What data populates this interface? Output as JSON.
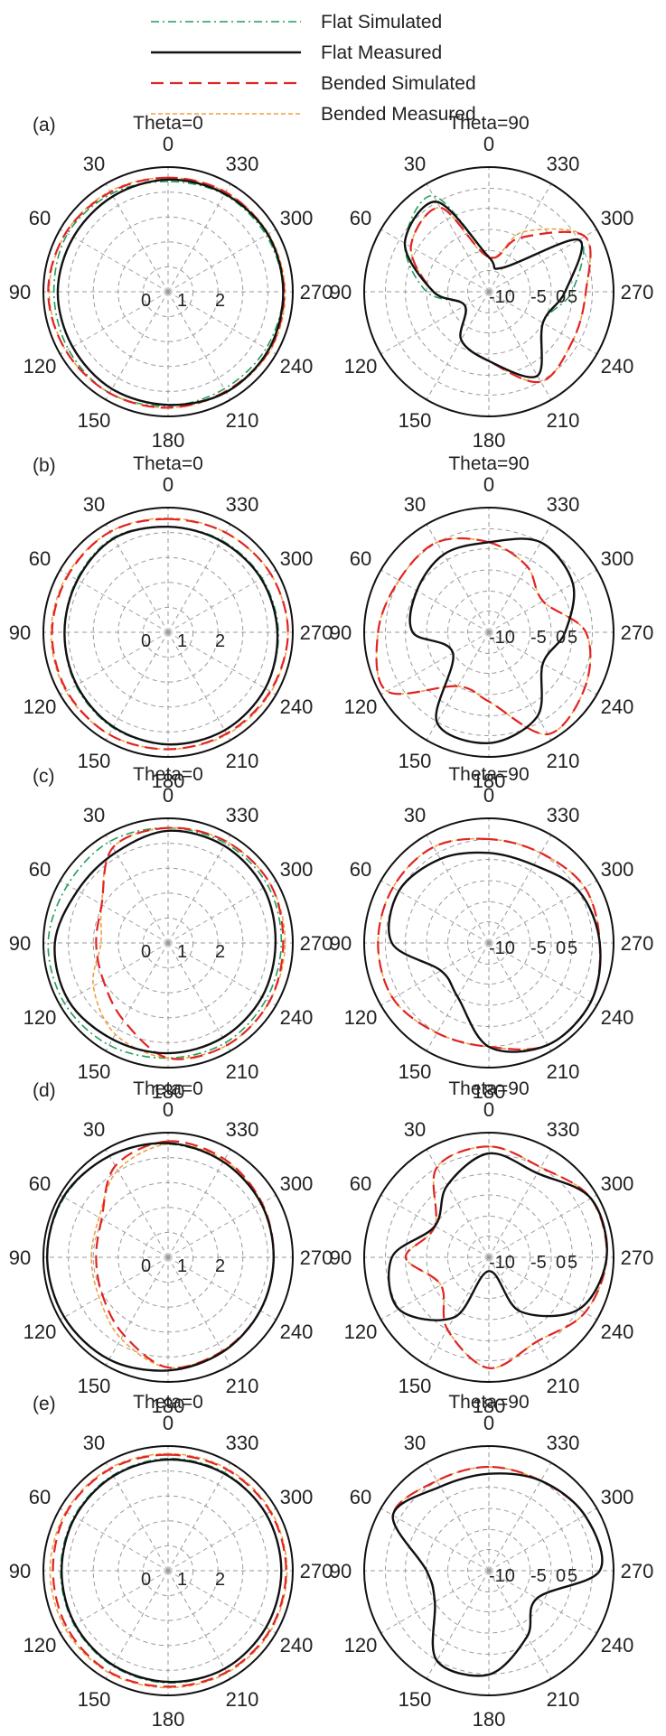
{
  "legend": [
    {
      "label": "Flat Simulated",
      "color": "#1f9e5a",
      "dash": "dashdot"
    },
    {
      "label": "Flat Measured",
      "color": "#111111",
      "dash": "solid"
    },
    {
      "label": "Bended Simulated",
      "color": "#e02424",
      "dash": "longdash"
    },
    {
      "label": "Bended Measured",
      "color": "#f0a040",
      "dash": "shortdash"
    }
  ],
  "chart_data": [
    {
      "type": "polar",
      "panel": "(a)",
      "title": "Theta=0",
      "angle_labels": [
        "0",
        "30",
        "60",
        "90",
        "120",
        "150",
        "180",
        "210",
        "240",
        "270",
        "300",
        "330"
      ],
      "radial_labels": [
        "0",
        "1",
        "2"
      ],
      "series": [
        {
          "name": "Flat Simulated",
          "r": [
            2.3,
            2.36,
            2.42,
            2.38,
            2.4,
            2.44,
            2.38,
            2.34,
            2.36,
            2.4,
            2.36,
            2.34
          ]
        },
        {
          "name": "Flat Measured",
          "r": [
            2.34,
            2.3,
            2.28,
            2.3,
            2.3,
            2.34,
            2.36,
            2.42,
            2.42,
            2.4,
            2.4,
            2.36
          ]
        },
        {
          "name": "Bended Simulated",
          "r": [
            2.38,
            2.4,
            2.46,
            2.5,
            2.46,
            2.44,
            2.42,
            2.4,
            2.44,
            2.42,
            2.4,
            2.4
          ]
        },
        {
          "name": "Bended Measured",
          "r": [
            2.38,
            2.42,
            2.46,
            2.48,
            2.46,
            2.44,
            2.42,
            2.42,
            2.46,
            2.44,
            2.42,
            2.4
          ]
        }
      ]
    },
    {
      "type": "polar",
      "panel": "",
      "title": "Theta=90",
      "angle_labels": [
        "0",
        "30",
        "60",
        "90",
        "120",
        "150",
        "180",
        "210",
        "240",
        "270",
        "300",
        "330"
      ],
      "radial_labels": [
        "-10",
        "-5",
        "0",
        "5"
      ],
      "series": [
        {
          "name": "Flat Simulated",
          "r": [
            -7,
            4,
            2,
            -3,
            -8,
            -4,
            -2,
            2,
            -3,
            0,
            3,
            -8
          ]
        },
        {
          "name": "Flat Measured",
          "r": [
            -7,
            3,
            2,
            -4,
            -8,
            -4,
            -2,
            2,
            -3,
            -1,
            3,
            -8
          ]
        },
        {
          "name": "Bended Simulated",
          "r": [
            -7,
            2,
            1,
            -4,
            -8,
            -4,
            -2,
            3,
            2,
            2,
            4,
            -3
          ]
        },
        {
          "name": "Bended Measured",
          "r": [
            -7,
            2,
            1,
            -4,
            -8,
            -4,
            -2,
            3,
            2,
            2,
            4,
            -2
          ]
        }
      ]
    },
    {
      "type": "polar",
      "panel": "(b)",
      "title": "Theta=0",
      "angle_labels": [
        "0",
        "30",
        "60",
        "90",
        "120",
        "150",
        "180",
        "210",
        "240",
        "270",
        "300",
        "330"
      ],
      "radial_labels": [
        "0",
        "1",
        "2"
      ],
      "series": [
        {
          "name": "Flat Simulated",
          "r": [
            2.2,
            2.28,
            2.2,
            2.16,
            2.22,
            2.3,
            2.34,
            2.36,
            2.34,
            2.3,
            2.26,
            2.22
          ]
        },
        {
          "name": "Flat Measured",
          "r": [
            2.2,
            2.26,
            2.18,
            2.16,
            2.2,
            2.28,
            2.34,
            2.36,
            2.34,
            2.28,
            2.24,
            2.2
          ]
        },
        {
          "name": "Bended Simulated",
          "r": [
            2.36,
            2.42,
            2.4,
            2.42,
            2.44,
            2.46,
            2.44,
            2.44,
            2.46,
            2.5,
            2.46,
            2.4
          ]
        },
        {
          "name": "Bended Measured",
          "r": [
            2.38,
            2.42,
            2.42,
            2.44,
            2.46,
            2.46,
            2.44,
            2.46,
            2.48,
            2.5,
            2.46,
            2.4
          ]
        }
      ]
    },
    {
      "type": "polar",
      "panel": "",
      "title": "Theta=90",
      "angle_labels": [
        "0",
        "30",
        "60",
        "90",
        "120",
        "150",
        "180",
        "210",
        "240",
        "270",
        "300",
        "330"
      ],
      "radial_labels": [
        "-10",
        "-5",
        "0",
        "5"
      ],
      "series": [
        {
          "name": "Flat Simulated",
          "r": [
            1,
            1,
            0,
            -1,
            -6,
            3,
            4,
            2,
            -3,
            -1,
            2,
            3
          ]
        },
        {
          "name": "Flat Measured",
          "r": [
            1,
            1,
            0,
            -1,
            -6,
            3,
            4,
            2,
            -3,
            -1,
            2,
            3
          ]
        },
        {
          "name": "Bended Simulated",
          "r": [
            1,
            3,
            3,
            4,
            5,
            -3,
            -2,
            5,
            4,
            2,
            -3,
            -1
          ]
        },
        {
          "name": "Bended Measured",
          "r": [
            1,
            3,
            3,
            4,
            5,
            -3,
            -2,
            5,
            4,
            2,
            -3,
            -1
          ]
        }
      ]
    },
    {
      "type": "polar",
      "panel": "(c)",
      "title": "Theta=0",
      "angle_labels": [
        "0",
        "30",
        "60",
        "90",
        "120",
        "150",
        "180",
        "210",
        "240",
        "270",
        "300",
        "330"
      ],
      "radial_labels": [
        "0",
        "1",
        "2"
      ],
      "series": [
        {
          "name": "Flat Simulated",
          "r": [
            2.4,
            2.44,
            2.42,
            2.5,
            2.5,
            2.46,
            2.4,
            2.4,
            2.36,
            2.36,
            2.4,
            2.4
          ]
        },
        {
          "name": "Flat Measured",
          "r": [
            2.34,
            2.18,
            2.18,
            2.36,
            2.4,
            2.32,
            2.3,
            2.28,
            2.26,
            2.24,
            2.3,
            2.34
          ]
        },
        {
          "name": "Bended Simulated",
          "r": [
            2.4,
            2.3,
            1.6,
            1.5,
            1.56,
            1.86,
            2.4,
            2.46,
            2.44,
            2.4,
            2.46,
            2.44
          ]
        },
        {
          "name": "Bended Measured",
          "r": [
            2.4,
            2.3,
            1.6,
            1.4,
            1.8,
            2.2,
            2.4,
            2.46,
            2.44,
            2.44,
            2.46,
            2.44
          ]
        }
      ]
    },
    {
      "type": "polar",
      "panel": "",
      "title": "Theta=90",
      "angle_labels": [
        "0",
        "30",
        "60",
        "90",
        "120",
        "150",
        "180",
        "210",
        "240",
        "270",
        "300",
        "330"
      ],
      "radial_labels": [
        "-10",
        "-5",
        "0",
        "5"
      ],
      "series": [
        {
          "name": "Flat Simulated",
          "r": [
            1,
            2,
            3,
            2,
            -4,
            -3,
            3,
            5,
            5,
            4,
            3,
            1
          ]
        },
        {
          "name": "Flat Measured",
          "r": [
            1,
            2,
            3,
            2,
            -4,
            -3,
            3,
            5,
            5,
            4,
            3,
            1
          ]
        },
        {
          "name": "Bended Simulated",
          "r": [
            3,
            4,
            4,
            4,
            4,
            3,
            3,
            5,
            5,
            4,
            4,
            3
          ]
        },
        {
          "name": "Bended Measured",
          "r": [
            3,
            4,
            4,
            4,
            4,
            3,
            3,
            5,
            5,
            4,
            4,
            3
          ]
        }
      ]
    },
    {
      "type": "polar",
      "panel": "(d)",
      "title": "Theta=0",
      "angle_labels": [
        "0",
        "30",
        "60",
        "90",
        "120",
        "150",
        "180",
        "210",
        "240",
        "270",
        "300",
        "330"
      ],
      "radial_labels": [
        "0",
        "1",
        "2"
      ],
      "series": [
        {
          "name": "Flat Simulated",
          "r": [
            2.36,
            2.44,
            2.5,
            2.52,
            2.5,
            2.46,
            2.36,
            2.28,
            2.22,
            2.2,
            2.24,
            2.3
          ]
        },
        {
          "name": "Flat Measured",
          "r": [
            2.38,
            2.44,
            2.52,
            2.52,
            2.5,
            2.46,
            2.36,
            2.28,
            2.22,
            2.2,
            2.24,
            2.3
          ]
        },
        {
          "name": "Bended Simulated",
          "r": [
            2.42,
            2.2,
            1.6,
            1.5,
            1.58,
            1.86,
            2.3,
            2.26,
            2.22,
            2.2,
            2.26,
            2.36
          ]
        },
        {
          "name": "Bended Measured",
          "r": [
            2.36,
            2.1,
            1.66,
            1.6,
            1.66,
            1.96,
            2.3,
            2.26,
            2.22,
            2.2,
            2.26,
            2.34
          ]
        }
      ]
    },
    {
      "type": "polar",
      "panel": "",
      "title": "Theta=90",
      "angle_labels": [
        "0",
        "30",
        "60",
        "90",
        "120",
        "150",
        "180",
        "210",
        "240",
        "270",
        "300",
        "330"
      ],
      "radial_labels": [
        "-10",
        "-5",
        "0",
        "5"
      ],
      "series": [
        {
          "name": "Flat Simulated",
          "r": [
            3,
            0,
            -3,
            2,
            3,
            -2,
            -10,
            -3,
            3,
            5,
            5,
            2
          ]
        },
        {
          "name": "Flat Measured",
          "r": [
            3,
            0,
            -3,
            2,
            3,
            -2,
            -10,
            -3,
            3,
            5,
            5,
            2
          ]
        },
        {
          "name": "Bended Simulated",
          "r": [
            4,
            3,
            -3,
            0,
            -4,
            0,
            4,
            2,
            4,
            5,
            5,
            3
          ]
        },
        {
          "name": "Bended Measured",
          "r": [
            4,
            3,
            -3,
            0,
            -4,
            0,
            4,
            2,
            4,
            5,
            5,
            3
          ]
        }
      ]
    },
    {
      "type": "polar",
      "panel": "(e)",
      "title": "Theta=0",
      "angle_labels": [
        "0",
        "30",
        "60",
        "90",
        "120",
        "150",
        "180",
        "210",
        "240",
        "270",
        "300",
        "330"
      ],
      "radial_labels": [
        "0",
        "1",
        "2"
      ],
      "series": [
        {
          "name": "Flat Simulated",
          "r": [
            2.34,
            2.3,
            2.26,
            2.24,
            2.26,
            2.3,
            2.34,
            2.36,
            2.36,
            2.36,
            2.36,
            2.36
          ]
        },
        {
          "name": "Flat Measured",
          "r": [
            2.32,
            2.28,
            2.24,
            2.22,
            2.24,
            2.28,
            2.32,
            2.36,
            2.36,
            2.36,
            2.36,
            2.34
          ]
        },
        {
          "name": "Bended Simulated",
          "r": [
            2.42,
            2.44,
            2.44,
            2.4,
            2.42,
            2.44,
            2.42,
            2.44,
            2.46,
            2.46,
            2.46,
            2.44
          ]
        },
        {
          "name": "Bended Measured",
          "r": [
            2.44,
            2.46,
            2.46,
            2.46,
            2.46,
            2.46,
            2.44,
            2.46,
            2.48,
            2.48,
            2.48,
            2.46
          ]
        }
      ]
    },
    {
      "type": "polar",
      "panel": "",
      "title": "Theta=90",
      "angle_labels": [
        "0",
        "30",
        "60",
        "90",
        "120",
        "150",
        "180",
        "210",
        "240",
        "270",
        "300",
        "330"
      ],
      "radial_labels": [
        "-10",
        "-5",
        "0",
        "5"
      ],
      "series": [
        {
          "name": "Flat Simulated",
          "r": [
            2,
            2,
            4,
            -3,
            -3,
            3,
            3,
            -1,
            -4,
            4,
            4,
            3
          ]
        },
        {
          "name": "Flat Measured",
          "r": [
            2,
            2,
            4,
            -3,
            -3,
            3,
            3,
            -1,
            -4,
            4,
            4,
            3
          ]
        },
        {
          "name": "Bended Simulated",
          "r": [
            3,
            3,
            4,
            -3,
            -3,
            3,
            3,
            -1,
            -4,
            4,
            4,
            3
          ]
        },
        {
          "name": "Bended Measured",
          "r": [
            3,
            3,
            4,
            -3,
            -3,
            3,
            3,
            -1,
            -4,
            4,
            4,
            3
          ]
        }
      ]
    }
  ]
}
